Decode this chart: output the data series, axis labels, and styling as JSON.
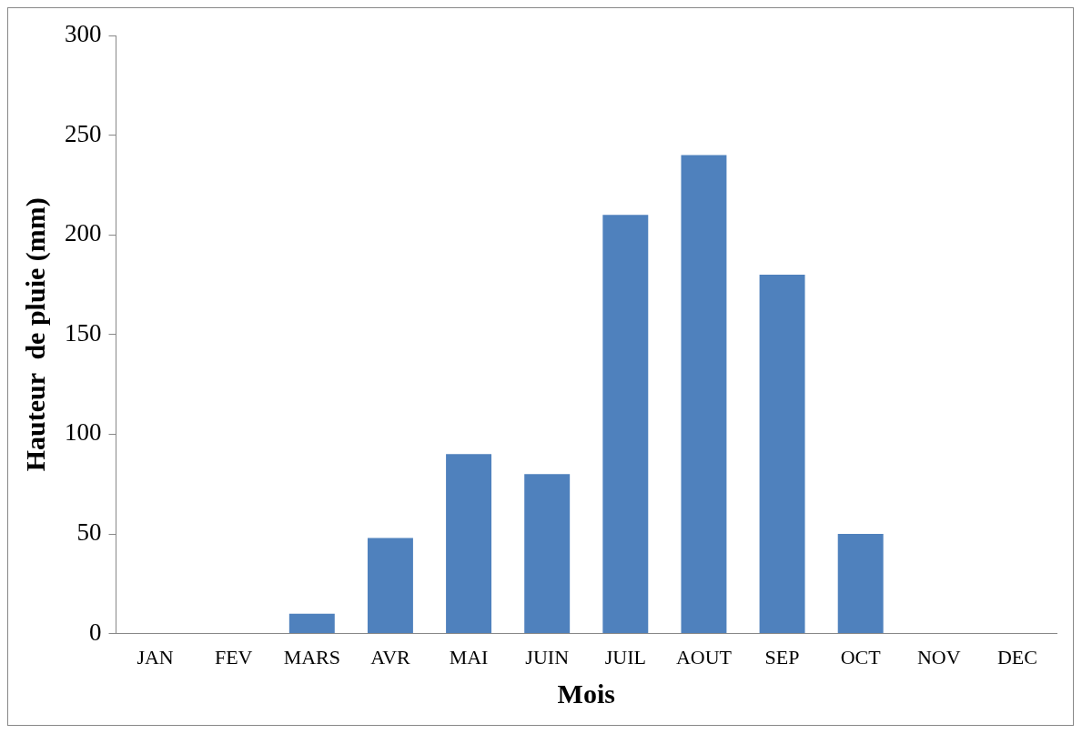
{
  "chart_data": {
    "type": "bar",
    "xlabel": "Mois",
    "ylabel": "Hauteur  de pluie (mm)",
    "categories": [
      "JAN",
      "FEV",
      "MARS",
      "AVR",
      "MAI",
      "JUIN",
      "JUIL",
      "AOUT",
      "SEP",
      "OCT",
      "NOV",
      "DEC"
    ],
    "values": [
      0,
      0,
      10,
      48,
      90,
      80,
      210,
      240,
      180,
      50,
      0,
      0
    ],
    "color": "#4f81bd",
    "ylim": [
      0,
      300
    ],
    "yticks": [
      0,
      50,
      100,
      150,
      200,
      250,
      300
    ],
    "grid": false,
    "legend": false
  }
}
